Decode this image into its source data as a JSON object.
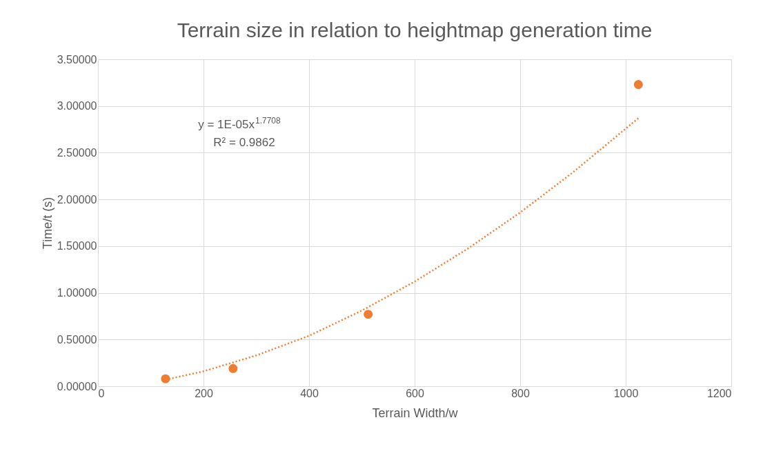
{
  "chart_data": {
    "type": "scatter",
    "title": "Terrain size in relation to heightmap generation time",
    "xlabel": "Terrain Width/w",
    "ylabel": "Time/t (s)",
    "xlim": [
      0,
      1200
    ],
    "xticks": [
      0,
      200,
      400,
      600,
      800,
      1000,
      1200
    ],
    "ylim": [
      0,
      3.5
    ],
    "yticks": [
      {
        "value": 0,
        "label": "0.00000"
      },
      {
        "value": 0.5,
        "label": "0.50000"
      },
      {
        "value": 1,
        "label": "1.00000"
      },
      {
        "value": 1.5,
        "label": "1.50000"
      },
      {
        "value": 2,
        "label": "2.00000"
      },
      {
        "value": 2.5,
        "label": "2.50000"
      },
      {
        "value": 3,
        "label": "3.00000"
      },
      {
        "value": 3.5,
        "label": "3.50000"
      }
    ],
    "grid": true,
    "marker": "circle",
    "series": [
      {
        "type": "scatter",
        "color": "#ed7d31",
        "x": [
          128,
          256,
          512,
          1024
        ],
        "values": [
          0.08,
          0.19,
          0.77,
          3.23
        ]
      },
      {
        "type": "line",
        "color": "#ed7d31",
        "line_style": "dotted",
        "marker": "none",
        "x": [
          128,
          200,
          300,
          400,
          500,
          600,
          700,
          800,
          900,
          1024
        ],
        "values": [
          0.07,
          0.16,
          0.33,
          0.54,
          0.81,
          1.12,
          1.47,
          1.86,
          2.29,
          2.87
        ]
      }
    ],
    "annotations": [
      "y = 1E-05x$^{1.7708}$",
      "R² = 0.9862"
    ]
  }
}
